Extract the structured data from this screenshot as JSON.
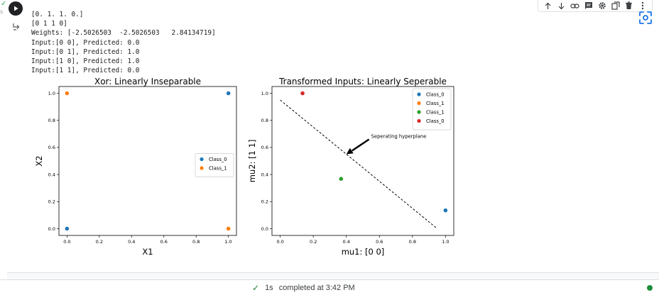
{
  "cell": {
    "exec_check": "✓",
    "exec_label": "s",
    "output_lines": [
      "[0. 1. 1. 0.]",
      "[0 1 1 0]",
      "Weights: [-2.5026503  -2.5026503   2.84134719]",
      "Input:[0 0], Predicted: 0.0",
      "Input:[0 1], Predicted: 1.0",
      "Input:[1 0], Predicted: 1.0",
      "Input:[1 1], Predicted: 0.0"
    ]
  },
  "toolbar": {
    "icons": [
      "arrow-up-icon",
      "arrow-down-icon",
      "link-icon",
      "comment-icon",
      "gear-icon",
      "mirror-cell-icon",
      "delete-icon",
      "more-icon"
    ]
  },
  "chart_data": [
    {
      "type": "scatter",
      "title": "Xor: Linearly Inseparable",
      "xlabel": "X1",
      "ylabel": "X2",
      "xlim": [
        -0.05,
        1.05
      ],
      "ylim": [
        -0.05,
        1.05
      ],
      "xticks": [
        "0.0",
        "0.2",
        "0.4",
        "0.6",
        "0.8",
        "1.0"
      ],
      "yticks": [
        "0.0",
        "0.2",
        "0.4",
        "0.6",
        "0.8",
        "1.0"
      ],
      "tick_values": [
        0,
        0.2,
        0.4,
        0.6,
        0.8,
        1.0
      ],
      "legend_position": "center-right",
      "series": [
        {
          "name": "Class_0",
          "color": "#1f77b4",
          "points": [
            [
              0,
              0
            ],
            [
              1,
              1
            ]
          ]
        },
        {
          "name": "Class_1",
          "color": "#ff7f0e",
          "points": [
            [
              0,
              1
            ],
            [
              1,
              0
            ]
          ]
        }
      ]
    },
    {
      "type": "scatter",
      "title": "Transformed Inputs: Linearly Seperable",
      "xlabel": "mu1: [0 0]",
      "ylabel": "mu2: [1 1]",
      "xlim": [
        -0.05,
        1.05
      ],
      "ylim": [
        -0.05,
        1.05
      ],
      "xticks": [
        "0.0",
        "0.2",
        "0.4",
        "0.6",
        "0.8",
        "1.0"
      ],
      "yticks": [
        "0.0",
        "0.2",
        "0.4",
        "0.6",
        "0.8",
        "1.0"
      ],
      "tick_values": [
        0,
        0.2,
        0.4,
        0.6,
        0.8,
        1.0
      ],
      "legend_position": "top-right",
      "series": [
        {
          "name": "Class_0",
          "color": "#1f77b4",
          "points": [
            [
              1.0,
              0.135
            ]
          ]
        },
        {
          "name": "Class_1",
          "color": "#ff7f0e",
          "points": []
        },
        {
          "name": "Class_1",
          "color": "#2ca02c",
          "points": [
            [
              0.368,
              0.368
            ]
          ]
        },
        {
          "name": "Class_0",
          "color": "#d62728",
          "points": [
            [
              0.135,
              1.0
            ]
          ]
        }
      ],
      "line": {
        "style": "dashed",
        "color": "#000000",
        "from": [
          0.0,
          0.95
        ],
        "to": [
          0.95,
          0.0
        ]
      },
      "annotation": {
        "text": "Seperating hyperplane",
        "arrow_to": [
          0.4,
          0.55
        ],
        "text_at": [
          0.55,
          0.67
        ]
      }
    }
  ],
  "status": {
    "check": "✓",
    "duration": "1s",
    "text": "completed at 3:42 PM"
  }
}
